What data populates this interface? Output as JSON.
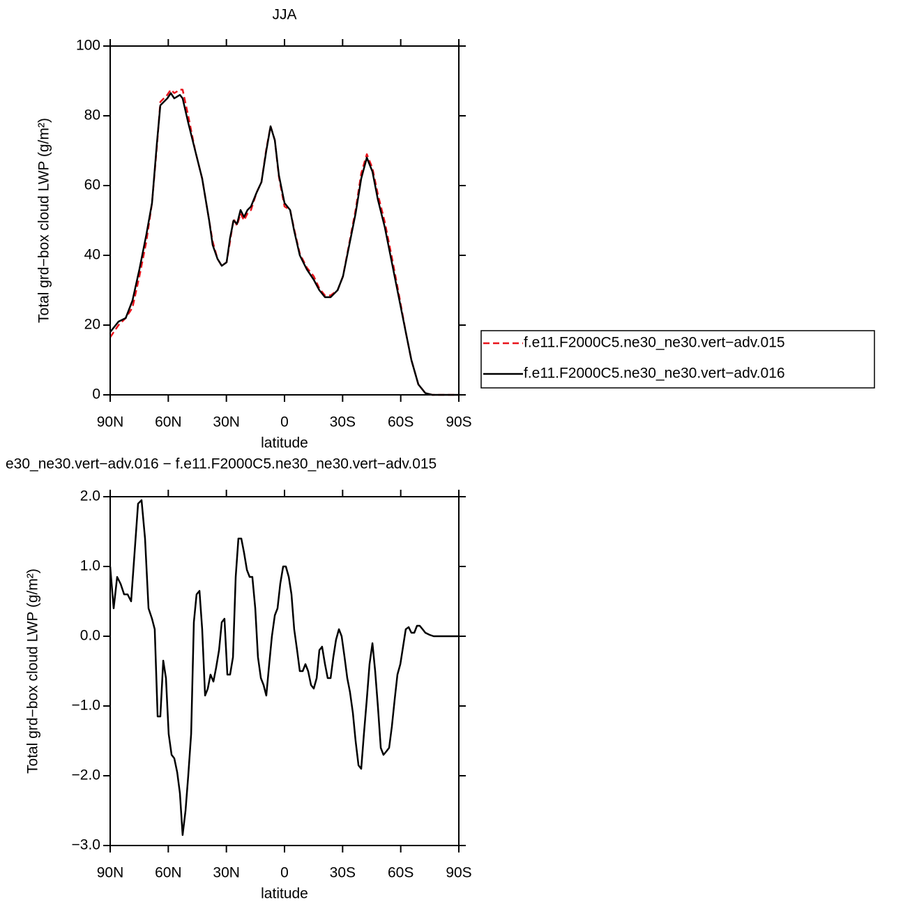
{
  "chart_data": [
    {
      "type": "line",
      "title": "JJA",
      "xlabel": "latitude",
      "ylabel": "Total grd−box cloud LWP (g/m²)",
      "xlim": [
        90,
        -90
      ],
      "xticks": [
        {
          "value": 90,
          "label": "90N"
        },
        {
          "value": 60,
          "label": "60N"
        },
        {
          "value": 30,
          "label": "30N"
        },
        0,
        {
          "value": -30,
          "label": "30S"
        },
        {
          "value": -60,
          "label": "60S"
        },
        {
          "value": -90,
          "label": "90S"
        }
      ],
      "ylim": [
        0,
        100
      ],
      "yticks": [
        0,
        20,
        40,
        60,
        80,
        100
      ],
      "legend": "right",
      "x": [
        90,
        85.7,
        82,
        78.5,
        74.9,
        71.3,
        68.4,
        65.9,
        64.1,
        60.5,
        58.7,
        56.9,
        54,
        52.6,
        49.7,
        46.1,
        42.5,
        38.9,
        37.1,
        34.6,
        32.4,
        29.9,
        28.1,
        26.3,
        24.5,
        22.7,
        20.9,
        19.1,
        17.3,
        14.4,
        11.9,
        9.4,
        7.2,
        5,
        2.9,
        0,
        -2.9,
        -5,
        -7.9,
        -11.5,
        -15.1,
        -18,
        -20.9,
        -23.8,
        -27.4,
        -30.2,
        -33.1,
        -36.7,
        -39.6,
        -42.5,
        -45.4,
        -48.2,
        -51.8,
        -55.4,
        -59,
        -62.6,
        -65.5,
        -69.1,
        -72.7,
        -76.3,
        -90
      ],
      "series": [
        {
          "name": "f.e11.F2000C5.ne30_ne30.vert−adv.015",
          "color": "#e8141c",
          "dashed": true,
          "values": [
            16.5,
            20,
            22,
            25,
            34,
            44,
            55,
            71,
            84,
            86,
            87.5,
            86.5,
            87.5,
            87.5,
            80,
            70,
            62,
            50,
            44,
            39,
            37,
            38,
            44,
            50.5,
            48.5,
            52,
            50,
            52,
            53,
            58,
            61,
            70.5,
            77,
            73,
            62.5,
            54,
            53,
            47.5,
            40.5,
            36.5,
            34,
            30.5,
            28.5,
            28.5,
            30,
            34,
            42.5,
            53,
            63.5,
            69,
            65,
            57.5,
            49.5,
            39.5,
            29,
            18,
            10,
            3,
            0.5,
            0,
            0
          ]
        },
        {
          "name": "f.e11.F2000C5.ne30_ne30.vert−adv.016",
          "color": "#000000",
          "dashed": false,
          "values": [
            18,
            21,
            22,
            27,
            36,
            46,
            55,
            72,
            83,
            85,
            86.5,
            85,
            86,
            85,
            78,
            70,
            62,
            50,
            43,
            39,
            37,
            38,
            45,
            50,
            49,
            53,
            51,
            53,
            54,
            58,
            61,
            70,
            77,
            73,
            63,
            55,
            53,
            47,
            40,
            36,
            33,
            30,
            28,
            28,
            30,
            34,
            42,
            52,
            62,
            68,
            64,
            56,
            48,
            38,
            28,
            18,
            10,
            3,
            0.5,
            0,
            0
          ]
        }
      ]
    },
    {
      "type": "line",
      "title": "e30_ne30.vert−adv.016 − f.e11.F2000C5.ne30_ne30.vert−adv.015",
      "xlabel": "latitude",
      "ylabel": "Total grd−box cloud LWP (g/m²)",
      "xlim": [
        90,
        -90
      ],
      "xticks": [
        {
          "value": 90,
          "label": "90N"
        },
        {
          "value": 60,
          "label": "60N"
        },
        {
          "value": 30,
          "label": "30N"
        },
        0,
        {
          "value": -30,
          "label": "30S"
        },
        {
          "value": -60,
          "label": "60S"
        },
        {
          "value": -90,
          "label": "90S"
        }
      ],
      "ylim": [
        -3,
        2
      ],
      "yticks": [
        {
          "value": -3,
          "label": "−3.0"
        },
        {
          "value": -2,
          "label": "−2.0"
        },
        {
          "value": -1,
          "label": "−1.0"
        },
        {
          "value": 0,
          "label": "0.0"
        },
        {
          "value": 1,
          "label": "1.0"
        },
        {
          "value": 2,
          "label": "2.0"
        }
      ],
      "x": [
        90,
        88.2,
        86.4,
        84.6,
        82.8,
        81,
        79.2,
        77.4,
        75.6,
        73.8,
        72,
        70.2,
        68.4,
        67,
        65.5,
        64.1,
        62.6,
        61.2,
        59.8,
        58.3,
        56.9,
        55.4,
        54,
        52.6,
        51.1,
        49.7,
        48.2,
        46.8,
        45.4,
        43.9,
        42.5,
        41,
        39.6,
        38.2,
        36.7,
        35.3,
        33.8,
        32.4,
        31,
        29.5,
        28.1,
        26.6,
        25.2,
        23.8,
        22.3,
        20.9,
        19.4,
        18,
        16.6,
        15.1,
        13.7,
        12.2,
        10.8,
        9.4,
        7.9,
        6.5,
        5,
        3.6,
        2.2,
        0.7,
        -0.7,
        -2.2,
        -3.6,
        -5,
        -6.5,
        -7.9,
        -9.4,
        -10.8,
        -12.2,
        -13.7,
        -15.1,
        -16.6,
        -18,
        -19.4,
        -20.9,
        -22.3,
        -23.8,
        -25.2,
        -26.6,
        -28.1,
        -29.5,
        -31,
        -32.4,
        -33.8,
        -35.3,
        -36.7,
        -38.2,
        -39.6,
        -41,
        -42.5,
        -43.9,
        -45.4,
        -46.8,
        -48.2,
        -49.7,
        -51.1,
        -52.6,
        -54,
        -55.4,
        -56.9,
        -58.3,
        -59.8,
        -61.2,
        -62.6,
        -64.1,
        -65.5,
        -67,
        -68.4,
        -69.8,
        -71.3,
        -72.7,
        -74.9,
        -77,
        -90
      ],
      "series": [
        {
          "color": "#000000",
          "dashed": false,
          "values": [
            1.0,
            0.4,
            0.85,
            0.75,
            0.6,
            0.6,
            0.5,
            1.2,
            1.9,
            1.95,
            1.4,
            0.4,
            0.25,
            0.1,
            -1.15,
            -1.15,
            -0.35,
            -0.6,
            -1.4,
            -1.7,
            -1.75,
            -1.95,
            -2.25,
            -2.85,
            -2.5,
            -2.0,
            -1.4,
            0.2,
            0.6,
            0.65,
            0.1,
            -0.85,
            -0.75,
            -0.55,
            -0.65,
            -0.45,
            -0.2,
            0.2,
            0.25,
            -0.55,
            -0.55,
            -0.3,
            0.85,
            1.4,
            1.4,
            1.2,
            0.95,
            0.85,
            0.85,
            0.4,
            -0.3,
            -0.6,
            -0.7,
            -0.85,
            -0.4,
            0.0,
            0.3,
            0.4,
            0.75,
            1.0,
            1.0,
            0.85,
            0.6,
            0.1,
            -0.2,
            -0.5,
            -0.5,
            -0.4,
            -0.5,
            -0.7,
            -0.75,
            -0.6,
            -0.2,
            -0.15,
            -0.4,
            -0.6,
            -0.6,
            -0.3,
            -0.05,
            0.1,
            0.0,
            -0.3,
            -0.6,
            -0.8,
            -1.1,
            -1.5,
            -1.85,
            -1.9,
            -1.4,
            -0.9,
            -0.4,
            -0.1,
            -0.5,
            -1.0,
            -1.6,
            -1.7,
            -1.65,
            -1.6,
            -1.3,
            -0.9,
            -0.55,
            -0.4,
            -0.15,
            0.1,
            0.13,
            0.05,
            0.05,
            0.15,
            0.15,
            0.1,
            0.05,
            0.02,
            0.0,
            0.0
          ]
        }
      ]
    }
  ]
}
